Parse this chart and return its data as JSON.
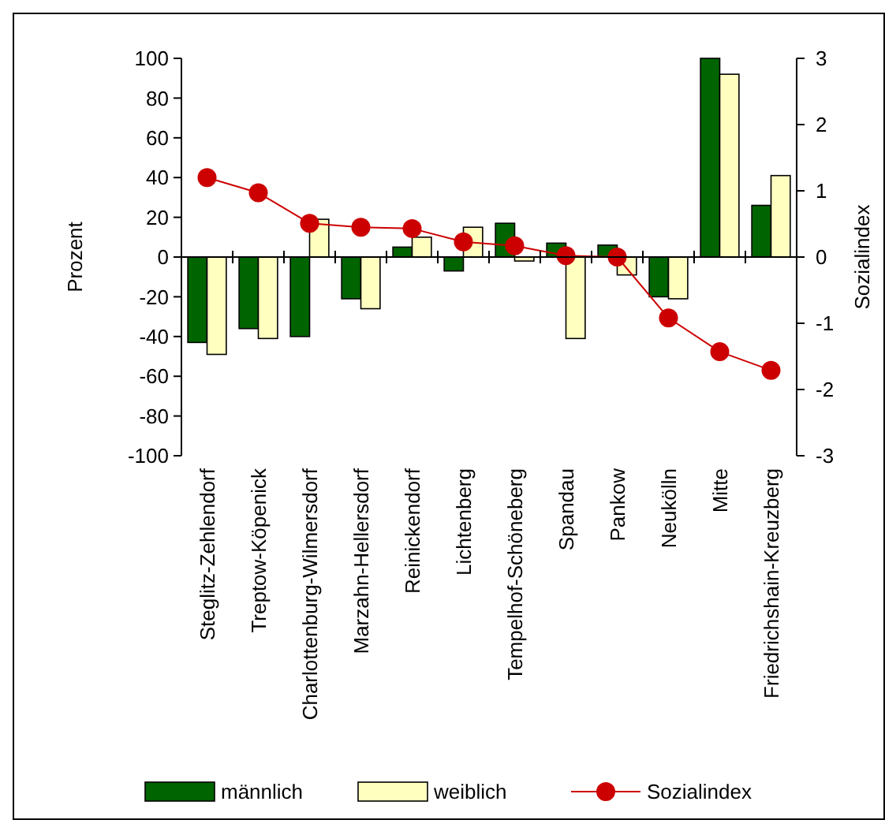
{
  "chart_data": {
    "type": "bar",
    "ylabel": "Prozent",
    "y2label": "Sozialindex",
    "categories": [
      "Steglitz-Zehlendorf",
      "Treptow-Köpenick",
      "Charlottenburg-Wilmersdorf",
      "Marzahn-Hellersdorf",
      "Reinickendorf",
      "Lichtenberg",
      "Tempelhof-Schöneberg",
      "Spandau",
      "Pankow",
      "Neukölln",
      "Mitte",
      "Friedrichshain-Kreuzberg"
    ],
    "series": [
      {
        "name": "männlich",
        "color": "#006400",
        "values": [
          -43,
          -36,
          -40,
          -21,
          5,
          -7,
          17,
          7,
          6,
          -20,
          100,
          26
        ]
      },
      {
        "name": "weiblich",
        "color": "#ffffc0",
        "values": [
          -49,
          -41,
          19,
          -26,
          10,
          15,
          -2,
          -41,
          -9,
          -21,
          92,
          41
        ]
      },
      {
        "name": "Sozialindex",
        "type": "line",
        "axis": "y2",
        "color": "#cc0000",
        "values": [
          1.2,
          0.97,
          0.51,
          0.45,
          0.43,
          0.23,
          0.17,
          0.02,
          0.0,
          -0.92,
          -1.43,
          -1.71
        ]
      }
    ],
    "ylim": [
      -100,
      100
    ],
    "yticks": [
      -100,
      -80,
      -60,
      -40,
      -20,
      0,
      20,
      40,
      60,
      80,
      100
    ],
    "y2lim": [
      -3,
      3
    ],
    "y2ticks": [
      -3,
      -2,
      -1,
      0,
      1,
      2,
      3
    ],
    "marker": "circle",
    "legend": "bottom"
  }
}
